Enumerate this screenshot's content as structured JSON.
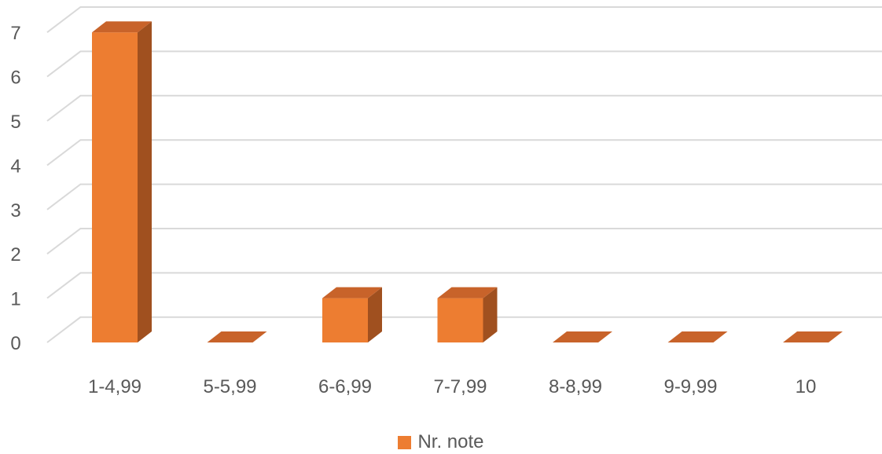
{
  "chart_data": {
    "type": "bar",
    "style": "3d-column",
    "categories": [
      "1-4,99",
      "5-5,99",
      "6-6,99",
      "7-7,99",
      "8-8,99",
      "9-9,99",
      "10"
    ],
    "series": [
      {
        "name": "Nr. note",
        "values": [
          7,
          0,
          1,
          1,
          0,
          0,
          0
        ]
      }
    ],
    "ylim": [
      0,
      7
    ],
    "yticks": [
      0,
      1,
      2,
      3,
      4,
      5,
      6,
      7
    ],
    "grid": true,
    "legend": "bottom",
    "title": "",
    "xlabel": "",
    "ylabel": ""
  },
  "colors": {
    "bar_front": "#ed7d31",
    "bar_side": "#a0501f",
    "bar_top": "#c8632a",
    "grid": "#d9d9d9",
    "text": "#595959"
  }
}
